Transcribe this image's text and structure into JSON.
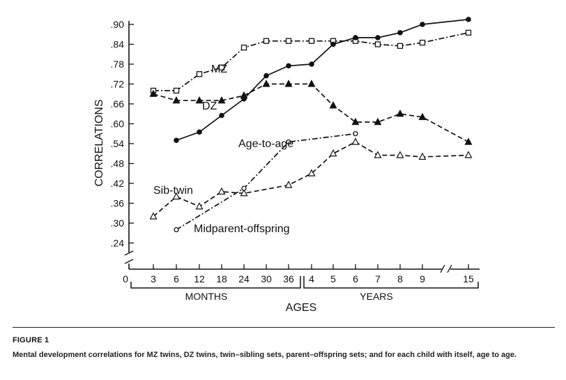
{
  "figure": {
    "title": "FIGURE 1",
    "caption": "Mental development correlations for MZ twins, DZ twins, twin–sibling sets, parent–offspring sets; and for each child with itself, age to age."
  },
  "chart_data": {
    "type": "line",
    "ylabel": "CORRELATIONS",
    "xlabel": "AGES",
    "x_groups": [
      "MONTHS",
      "YEARS"
    ],
    "x_origin_label": "0",
    "categories": [
      "3",
      "6",
      "12",
      "18",
      "24",
      "30",
      "36",
      "4",
      "5",
      "6",
      "7",
      "8",
      "9",
      "15"
    ],
    "y_ticks": [
      ".24",
      ".30",
      ".36",
      ".42",
      ".48",
      ".54",
      ".60",
      ".66",
      ".72",
      ".78",
      ".84",
      ".90"
    ],
    "ylim": [
      0.24,
      0.93
    ],
    "grid": false,
    "series": [
      {
        "name": "MZ",
        "marker": "square-open",
        "style": "dash-dot",
        "values": [
          0.7,
          0.7,
          0.75,
          0.77,
          0.83,
          0.85,
          0.85,
          0.85,
          0.85,
          0.85,
          0.84,
          0.835,
          0.845,
          0.875
        ]
      },
      {
        "name": "DZ",
        "marker": "triangle-filled",
        "style": "dashed",
        "values": [
          0.69,
          0.67,
          0.67,
          0.67,
          0.685,
          0.72,
          0.72,
          0.72,
          0.655,
          0.605,
          0.605,
          0.63,
          0.62,
          0.545
        ]
      },
      {
        "name": "Age-to-age",
        "marker": "circle-filled",
        "style": "solid",
        "values": [
          null,
          0.55,
          0.575,
          0.625,
          0.675,
          0.745,
          0.775,
          0.78,
          0.84,
          0.86,
          0.86,
          0.875,
          0.9,
          0.915
        ]
      },
      {
        "name": "Sib-twin",
        "marker": "triangle-open",
        "style": "dashed",
        "values": [
          0.32,
          0.38,
          0.35,
          0.395,
          0.39,
          null,
          0.415,
          0.45,
          0.51,
          0.545,
          0.505,
          0.505,
          0.5,
          0.505
        ]
      },
      {
        "name": "Midparent-offspring",
        "marker": "circle-open",
        "style": "dash-dot",
        "values": [
          null,
          0.28,
          null,
          null,
          0.405,
          null,
          0.545,
          null,
          null,
          0.57,
          null,
          null,
          null,
          null
        ]
      }
    ]
  }
}
